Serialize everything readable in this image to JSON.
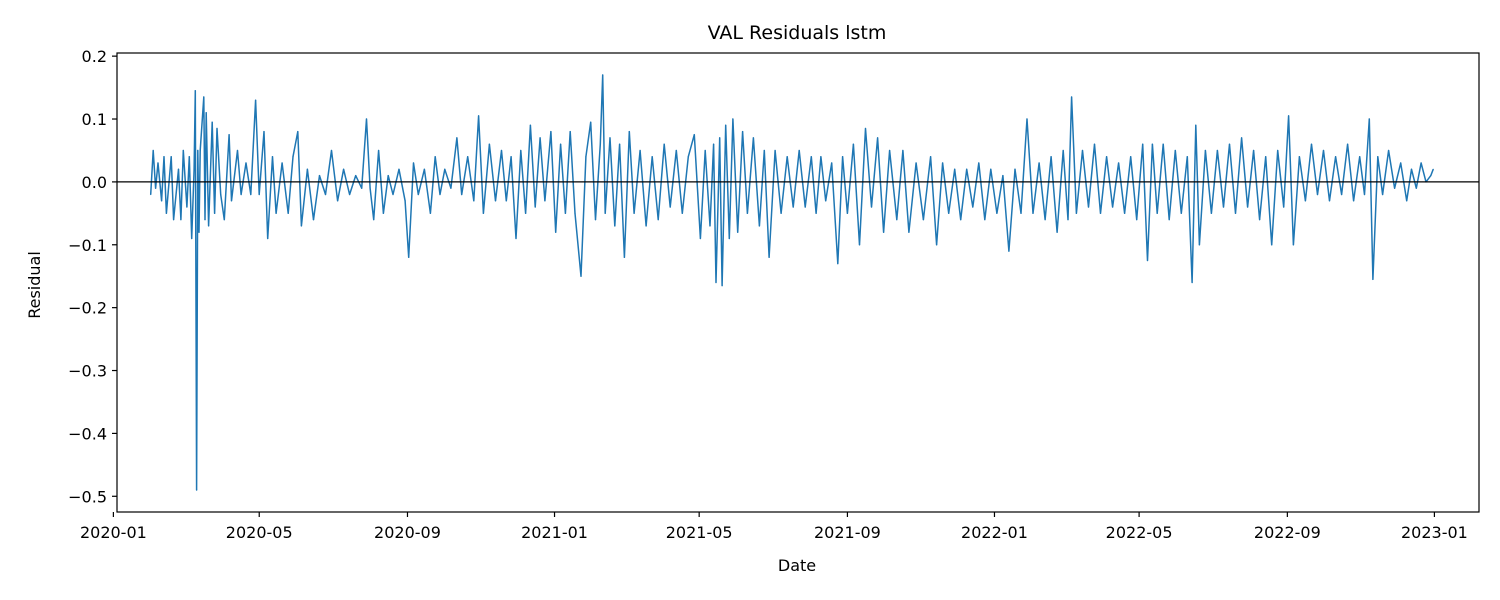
{
  "chart_data": {
    "type": "line",
    "title": "VAL Residuals lstm",
    "xlabel": "Date",
    "ylabel": "Residual",
    "x_axis_type": "date",
    "x_range": [
      "2020-01-04",
      "2023-02-07"
    ],
    "ylim": [
      -0.525,
      0.205
    ],
    "x_ticks": [
      "2020-01-01",
      "2020-05-01",
      "2020-09-01",
      "2021-01-01",
      "2021-05-01",
      "2021-09-01",
      "2022-01-01",
      "2022-05-01",
      "2022-09-01",
      "2023-01-01"
    ],
    "x_tick_labels": [
      "2020-01",
      "2020-05",
      "2020-09",
      "2021-01",
      "2021-05",
      "2021-09",
      "2022-01",
      "2022-05",
      "2022-09",
      "2023-01"
    ],
    "y_ticks": [
      0.2,
      0.1,
      0.0,
      -0.1,
      -0.2,
      -0.3,
      -0.4,
      -0.5
    ],
    "y_tick_labels": [
      "0.2",
      "0.1",
      "0.0",
      "−0.1",
      "−0.2",
      "−0.3",
      "−0.4",
      "−0.5"
    ],
    "reference_line": {
      "y": 0.0,
      "color": "#000000"
    },
    "grid": false,
    "series": [
      {
        "color": "#1f77b4",
        "points": [
          [
            "2020-02-01",
            -0.02
          ],
          [
            "2020-02-03",
            0.05
          ],
          [
            "2020-02-05",
            -0.01
          ],
          [
            "2020-02-07",
            0.03
          ],
          [
            "2020-02-10",
            -0.03
          ],
          [
            "2020-02-12",
            0.04
          ],
          [
            "2020-02-14",
            -0.05
          ],
          [
            "2020-02-18",
            0.04
          ],
          [
            "2020-02-20",
            -0.06
          ],
          [
            "2020-02-24",
            0.02
          ],
          [
            "2020-02-26",
            -0.06
          ],
          [
            "2020-02-28",
            0.05
          ],
          [
            "2020-03-02",
            -0.04
          ],
          [
            "2020-03-04",
            0.04
          ],
          [
            "2020-03-06",
            -0.09
          ],
          [
            "2020-03-08",
            0.02
          ],
          [
            "2020-03-09",
            0.145
          ],
          [
            "2020-03-10",
            -0.49
          ],
          [
            "2020-03-11",
            0.05
          ],
          [
            "2020-03-12",
            -0.08
          ],
          [
            "2020-03-13",
            0.05
          ],
          [
            "2020-03-16",
            0.135
          ],
          [
            "2020-03-17",
            -0.06
          ],
          [
            "2020-03-18",
            0.11
          ],
          [
            "2020-03-20",
            -0.07
          ],
          [
            "2020-03-23",
            0.095
          ],
          [
            "2020-03-25",
            -0.05
          ],
          [
            "2020-03-27",
            0.085
          ],
          [
            "2020-03-30",
            -0.02
          ],
          [
            "2020-04-02",
            -0.06
          ],
          [
            "2020-04-06",
            0.075
          ],
          [
            "2020-04-08",
            -0.03
          ],
          [
            "2020-04-13",
            0.05
          ],
          [
            "2020-04-16",
            -0.02
          ],
          [
            "2020-04-20",
            0.03
          ],
          [
            "2020-04-24",
            -0.02
          ],
          [
            "2020-04-28",
            0.13
          ],
          [
            "2020-05-01",
            -0.02
          ],
          [
            "2020-05-05",
            0.08
          ],
          [
            "2020-05-08",
            -0.09
          ],
          [
            "2020-05-12",
            0.04
          ],
          [
            "2020-05-15",
            -0.05
          ],
          [
            "2020-05-20",
            0.03
          ],
          [
            "2020-05-25",
            -0.05
          ],
          [
            "2020-05-29",
            0.04
          ],
          [
            "2020-06-02",
            0.08
          ],
          [
            "2020-06-05",
            -0.07
          ],
          [
            "2020-06-10",
            0.02
          ],
          [
            "2020-06-15",
            -0.06
          ],
          [
            "2020-06-20",
            0.01
          ],
          [
            "2020-06-25",
            -0.02
          ],
          [
            "2020-06-30",
            0.05
          ],
          [
            "2020-07-05",
            -0.03
          ],
          [
            "2020-07-10",
            0.02
          ],
          [
            "2020-07-15",
            -0.02
          ],
          [
            "2020-07-20",
            0.01
          ],
          [
            "2020-07-25",
            -0.01
          ],
          [
            "2020-07-29",
            0.1
          ],
          [
            "2020-08-01",
            -0.01
          ],
          [
            "2020-08-04",
            -0.06
          ],
          [
            "2020-08-08",
            0.05
          ],
          [
            "2020-08-12",
            -0.05
          ],
          [
            "2020-08-16",
            0.01
          ],
          [
            "2020-08-20",
            -0.02
          ],
          [
            "2020-08-25",
            0.02
          ],
          [
            "2020-08-30",
            -0.03
          ],
          [
            "2020-09-02",
            -0.12
          ],
          [
            "2020-09-06",
            0.03
          ],
          [
            "2020-09-10",
            -0.02
          ],
          [
            "2020-09-15",
            0.02
          ],
          [
            "2020-09-20",
            -0.05
          ],
          [
            "2020-09-24",
            0.04
          ],
          [
            "2020-09-28",
            -0.02
          ],
          [
            "2020-10-02",
            0.02
          ],
          [
            "2020-10-07",
            -0.01
          ],
          [
            "2020-10-12",
            0.07
          ],
          [
            "2020-10-16",
            -0.02
          ],
          [
            "2020-10-21",
            0.04
          ],
          [
            "2020-10-26",
            -0.03
          ],
          [
            "2020-10-30",
            0.105
          ],
          [
            "2020-11-03",
            -0.05
          ],
          [
            "2020-11-08",
            0.06
          ],
          [
            "2020-11-13",
            -0.03
          ],
          [
            "2020-11-18",
            0.05
          ],
          [
            "2020-11-22",
            -0.03
          ],
          [
            "2020-11-26",
            0.04
          ],
          [
            "2020-11-30",
            -0.09
          ],
          [
            "2020-12-04",
            0.05
          ],
          [
            "2020-12-08",
            -0.05
          ],
          [
            "2020-12-12",
            0.09
          ],
          [
            "2020-12-16",
            -0.04
          ],
          [
            "2020-12-20",
            0.07
          ],
          [
            "2020-12-24",
            -0.03
          ],
          [
            "2020-12-29",
            0.08
          ],
          [
            "2021-01-02",
            -0.08
          ],
          [
            "2021-01-06",
            0.06
          ],
          [
            "2021-01-10",
            -0.05
          ],
          [
            "2021-01-14",
            0.08
          ],
          [
            "2021-01-18",
            -0.05
          ],
          [
            "2021-01-23",
            -0.15
          ],
          [
            "2021-01-27",
            0.04
          ],
          [
            "2021-01-31",
            0.095
          ],
          [
            "2021-02-04",
            -0.06
          ],
          [
            "2021-02-08",
            0.06
          ],
          [
            "2021-02-10",
            0.17
          ],
          [
            "2021-02-12",
            -0.05
          ],
          [
            "2021-02-16",
            0.07
          ],
          [
            "2021-02-20",
            -0.07
          ],
          [
            "2021-02-24",
            0.06
          ],
          [
            "2021-02-28",
            -0.12
          ],
          [
            "2021-03-04",
            0.08
          ],
          [
            "2021-03-08",
            -0.05
          ],
          [
            "2021-03-13",
            0.05
          ],
          [
            "2021-03-18",
            -0.07
          ],
          [
            "2021-03-23",
            0.04
          ],
          [
            "2021-03-28",
            -0.06
          ],
          [
            "2021-04-02",
            0.06
          ],
          [
            "2021-04-07",
            -0.04
          ],
          [
            "2021-04-12",
            0.05
          ],
          [
            "2021-04-17",
            -0.05
          ],
          [
            "2021-04-22",
            0.04
          ],
          [
            "2021-04-27",
            0.075
          ],
          [
            "2021-05-02",
            -0.09
          ],
          [
            "2021-05-06",
            0.05
          ],
          [
            "2021-05-10",
            -0.07
          ],
          [
            "2021-05-13",
            0.06
          ],
          [
            "2021-05-15",
            -0.16
          ],
          [
            "2021-05-18",
            0.07
          ],
          [
            "2021-05-20",
            -0.165
          ],
          [
            "2021-05-23",
            0.09
          ],
          [
            "2021-05-26",
            -0.09
          ],
          [
            "2021-05-29",
            0.1
          ],
          [
            "2021-06-02",
            -0.08
          ],
          [
            "2021-06-06",
            0.08
          ],
          [
            "2021-06-10",
            -0.05
          ],
          [
            "2021-06-15",
            0.07
          ],
          [
            "2021-06-20",
            -0.07
          ],
          [
            "2021-06-24",
            0.05
          ],
          [
            "2021-06-28",
            -0.12
          ],
          [
            "2021-07-03",
            0.05
          ],
          [
            "2021-07-08",
            -0.05
          ],
          [
            "2021-07-13",
            0.04
          ],
          [
            "2021-07-18",
            -0.04
          ],
          [
            "2021-07-23",
            0.05
          ],
          [
            "2021-07-28",
            -0.04
          ],
          [
            "2021-08-02",
            0.04
          ],
          [
            "2021-08-06",
            -0.05
          ],
          [
            "2021-08-10",
            0.04
          ],
          [
            "2021-08-14",
            -0.03
          ],
          [
            "2021-08-19",
            0.03
          ],
          [
            "2021-08-24",
            -0.13
          ],
          [
            "2021-08-28",
            0.04
          ],
          [
            "2021-09-01",
            -0.05
          ],
          [
            "2021-09-06",
            0.06
          ],
          [
            "2021-09-11",
            -0.1
          ],
          [
            "2021-09-16",
            0.085
          ],
          [
            "2021-09-21",
            -0.04
          ],
          [
            "2021-09-26",
            0.07
          ],
          [
            "2021-10-01",
            -0.08
          ],
          [
            "2021-10-06",
            0.05
          ],
          [
            "2021-10-12",
            -0.06
          ],
          [
            "2021-10-17",
            0.05
          ],
          [
            "2021-10-22",
            -0.08
          ],
          [
            "2021-10-28",
            0.03
          ],
          [
            "2021-11-03",
            -0.06
          ],
          [
            "2021-11-09",
            0.04
          ],
          [
            "2021-11-14",
            -0.1
          ],
          [
            "2021-11-19",
            0.03
          ],
          [
            "2021-11-24",
            -0.05
          ],
          [
            "2021-11-29",
            0.02
          ],
          [
            "2021-12-04",
            -0.06
          ],
          [
            "2021-12-09",
            0.02
          ],
          [
            "2021-12-14",
            -0.04
          ],
          [
            "2021-12-19",
            0.03
          ],
          [
            "2021-12-24",
            -0.06
          ],
          [
            "2021-12-29",
            0.02
          ],
          [
            "2022-01-03",
            -0.05
          ],
          [
            "2022-01-08",
            0.01
          ],
          [
            "2022-01-13",
            -0.11
          ],
          [
            "2022-01-18",
            0.02
          ],
          [
            "2022-01-23",
            -0.05
          ],
          [
            "2022-01-28",
            0.1
          ],
          [
            "2022-02-02",
            -0.05
          ],
          [
            "2022-02-07",
            0.03
          ],
          [
            "2022-02-12",
            -0.06
          ],
          [
            "2022-02-17",
            0.04
          ],
          [
            "2022-02-22",
            -0.08
          ],
          [
            "2022-02-27",
            0.05
          ],
          [
            "2022-03-03",
            -0.06
          ],
          [
            "2022-03-06",
            0.135
          ],
          [
            "2022-03-10",
            -0.05
          ],
          [
            "2022-03-15",
            0.05
          ],
          [
            "2022-03-20",
            -0.04
          ],
          [
            "2022-03-25",
            0.06
          ],
          [
            "2022-03-30",
            -0.05
          ],
          [
            "2022-04-04",
            0.04
          ],
          [
            "2022-04-09",
            -0.04
          ],
          [
            "2022-04-14",
            0.03
          ],
          [
            "2022-04-19",
            -0.05
          ],
          [
            "2022-04-24",
            0.04
          ],
          [
            "2022-04-29",
            -0.06
          ],
          [
            "2022-05-04",
            0.06
          ],
          [
            "2022-05-08",
            -0.125
          ],
          [
            "2022-05-12",
            0.06
          ],
          [
            "2022-05-16",
            -0.05
          ],
          [
            "2022-05-21",
            0.06
          ],
          [
            "2022-05-26",
            -0.06
          ],
          [
            "2022-05-31",
            0.05
          ],
          [
            "2022-06-05",
            -0.05
          ],
          [
            "2022-06-10",
            0.04
          ],
          [
            "2022-06-14",
            -0.16
          ],
          [
            "2022-06-17",
            0.09
          ],
          [
            "2022-06-20",
            -0.1
          ],
          [
            "2022-06-25",
            0.05
          ],
          [
            "2022-06-30",
            -0.05
          ],
          [
            "2022-07-05",
            0.05
          ],
          [
            "2022-07-10",
            -0.04
          ],
          [
            "2022-07-15",
            0.06
          ],
          [
            "2022-07-20",
            -0.05
          ],
          [
            "2022-07-25",
            0.07
          ],
          [
            "2022-07-30",
            -0.04
          ],
          [
            "2022-08-04",
            0.05
          ],
          [
            "2022-08-09",
            -0.06
          ],
          [
            "2022-08-14",
            0.04
          ],
          [
            "2022-08-19",
            -0.1
          ],
          [
            "2022-08-24",
            0.05
          ],
          [
            "2022-08-29",
            -0.04
          ],
          [
            "2022-09-02",
            0.105
          ],
          [
            "2022-09-06",
            -0.1
          ],
          [
            "2022-09-11",
            0.04
          ],
          [
            "2022-09-16",
            -0.03
          ],
          [
            "2022-09-21",
            0.06
          ],
          [
            "2022-09-26",
            -0.02
          ],
          [
            "2022-10-01",
            0.05
          ],
          [
            "2022-10-06",
            -0.03
          ],
          [
            "2022-10-11",
            0.04
          ],
          [
            "2022-10-16",
            -0.02
          ],
          [
            "2022-10-21",
            0.06
          ],
          [
            "2022-10-26",
            -0.03
          ],
          [
            "2022-10-31",
            0.04
          ],
          [
            "2022-11-04",
            -0.02
          ],
          [
            "2022-11-08",
            0.1
          ],
          [
            "2022-11-11",
            -0.155
          ],
          [
            "2022-11-15",
            0.04
          ],
          [
            "2022-11-19",
            -0.02
          ],
          [
            "2022-11-24",
            0.05
          ],
          [
            "2022-11-29",
            -0.01
          ],
          [
            "2022-12-04",
            0.03
          ],
          [
            "2022-12-09",
            -0.03
          ],
          [
            "2022-12-13",
            0.02
          ],
          [
            "2022-12-17",
            -0.01
          ],
          [
            "2022-12-21",
            0.03
          ],
          [
            "2022-12-25",
            0.0
          ],
          [
            "2022-12-29",
            0.01
          ],
          [
            "2022-12-31",
            0.02
          ]
        ]
      }
    ]
  }
}
